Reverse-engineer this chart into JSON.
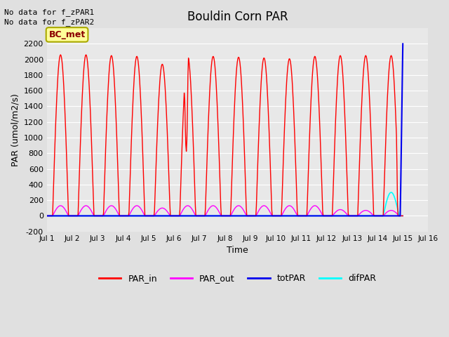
{
  "title": "Bouldin Corn PAR",
  "ylabel": "PAR (umol/m2/s)",
  "xlabel": "Time",
  "no_data_text": [
    "No data for f_zPAR1",
    "No data for f_zPAR2"
  ],
  "legend_label": "BC_met",
  "ylim": [
    -200,
    2400
  ],
  "yticks": [
    -200,
    0,
    200,
    400,
    600,
    800,
    1000,
    1200,
    1400,
    1600,
    1800,
    2000,
    2200
  ],
  "xlim": [
    0,
    15
  ],
  "xtick_positions": [
    0,
    1,
    2,
    3,
    4,
    5,
    6,
    7,
    8,
    9,
    10,
    11,
    12,
    13,
    14,
    15
  ],
  "xtick_labels": [
    "Jul 1",
    "Jul 2",
    "Jul 3",
    "Jul 4",
    "Jul 5",
    "Jul 6",
    "Jul 7",
    "Jul 8",
    "Jul 9",
    "Jul 10",
    "Jul 11",
    "Jul 12",
    "Jul 13",
    "Jul 14",
    "Jul 15",
    "Jul 16"
  ],
  "colors": {
    "PAR_in": "#ff0000",
    "PAR_out": "#ff00ff",
    "totPAR": "#0000ee",
    "difPAR": "#00ffff"
  },
  "par_in_peaks": [
    2060,
    2060,
    2050,
    2040,
    1940,
    2040,
    2040,
    2030,
    2020,
    2010,
    2040,
    2050,
    2050,
    2050
  ],
  "par_out_peaks": [
    130,
    130,
    130,
    130,
    100,
    130,
    130,
    130,
    130,
    130,
    130,
    80,
    70,
    70
  ],
  "bg_color": "#e0e0e0",
  "plot_bg": "#e8e8e8",
  "grid_color": "#ffffff",
  "figsize": [
    6.4,
    4.8
  ],
  "dpi": 100
}
